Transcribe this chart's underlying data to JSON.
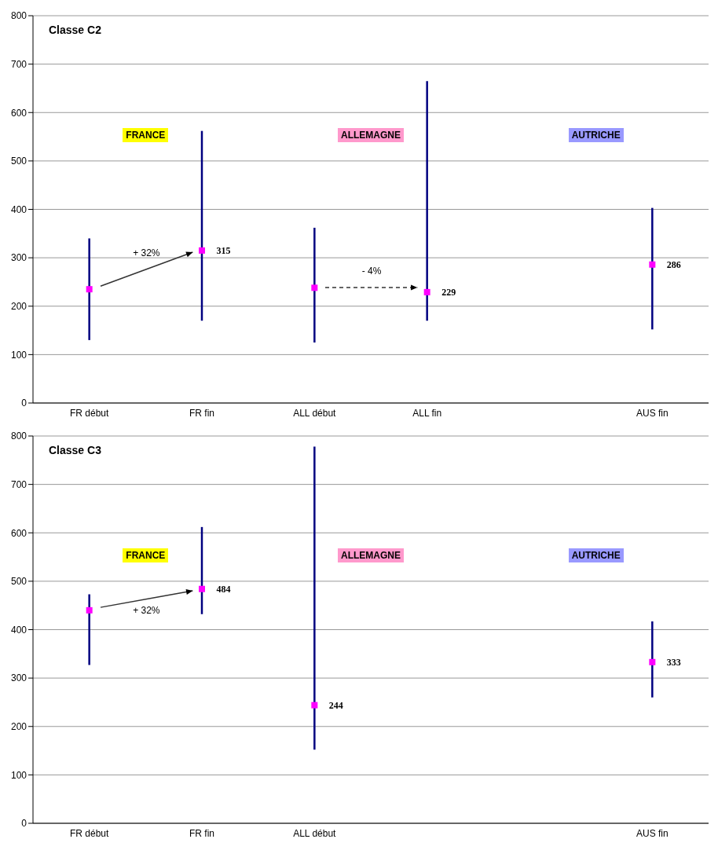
{
  "chart_data": [
    {
      "type": "scatter",
      "title": "Classe C2",
      "categories": [
        "FR début",
        "FR fin",
        "ALL début",
        "ALL fin",
        null,
        "AUS fin"
      ],
      "series": [
        {
          "color": "#ff00ff",
          "values": [
            235,
            315,
            238,
            229,
            null,
            286
          ],
          "errors": [
            [
              130,
              340
            ],
            [
              170,
              562
            ],
            [
              125,
              362
            ],
            [
              170,
              665
            ],
            null,
            [
              152,
              403
            ]
          ],
          "value_labels": [
            null,
            "315",
            null,
            "229",
            null,
            "286"
          ]
        }
      ],
      "ylim": [
        0,
        800
      ],
      "yticks": [
        0,
        100,
        200,
        300,
        400,
        500,
        600,
        700,
        800
      ],
      "grid": "y",
      "marker": "square",
      "annotations": [
        "FRANCE",
        "ALLEMAGNE",
        "AUTRICHE",
        "+ 32%",
        "- 4%"
      ]
    },
    {
      "type": "scatter",
      "title": "Classe C3",
      "categories": [
        "FR début",
        "FR fin",
        "ALL début",
        null,
        null,
        "AUS fin"
      ],
      "series": [
        {
          "color": "#ff00ff",
          "values": [
            440,
            484,
            244,
            null,
            null,
            333
          ],
          "errors": [
            [
              327,
              473
            ],
            [
              432,
              612
            ],
            [
              152,
              778
            ],
            null,
            null,
            [
              260,
              417
            ]
          ],
          "value_labels": [
            null,
            "484",
            "244",
            null,
            null,
            "333"
          ]
        }
      ],
      "ylim": [
        0,
        800
      ],
      "yticks": [
        0,
        100,
        200,
        300,
        400,
        500,
        600,
        700,
        800
      ],
      "grid": "y",
      "marker": "square",
      "annotations": [
        "FRANCE",
        "ALLEMAGNE",
        "AUTRICHE",
        "+ 32%"
      ]
    }
  ]
}
